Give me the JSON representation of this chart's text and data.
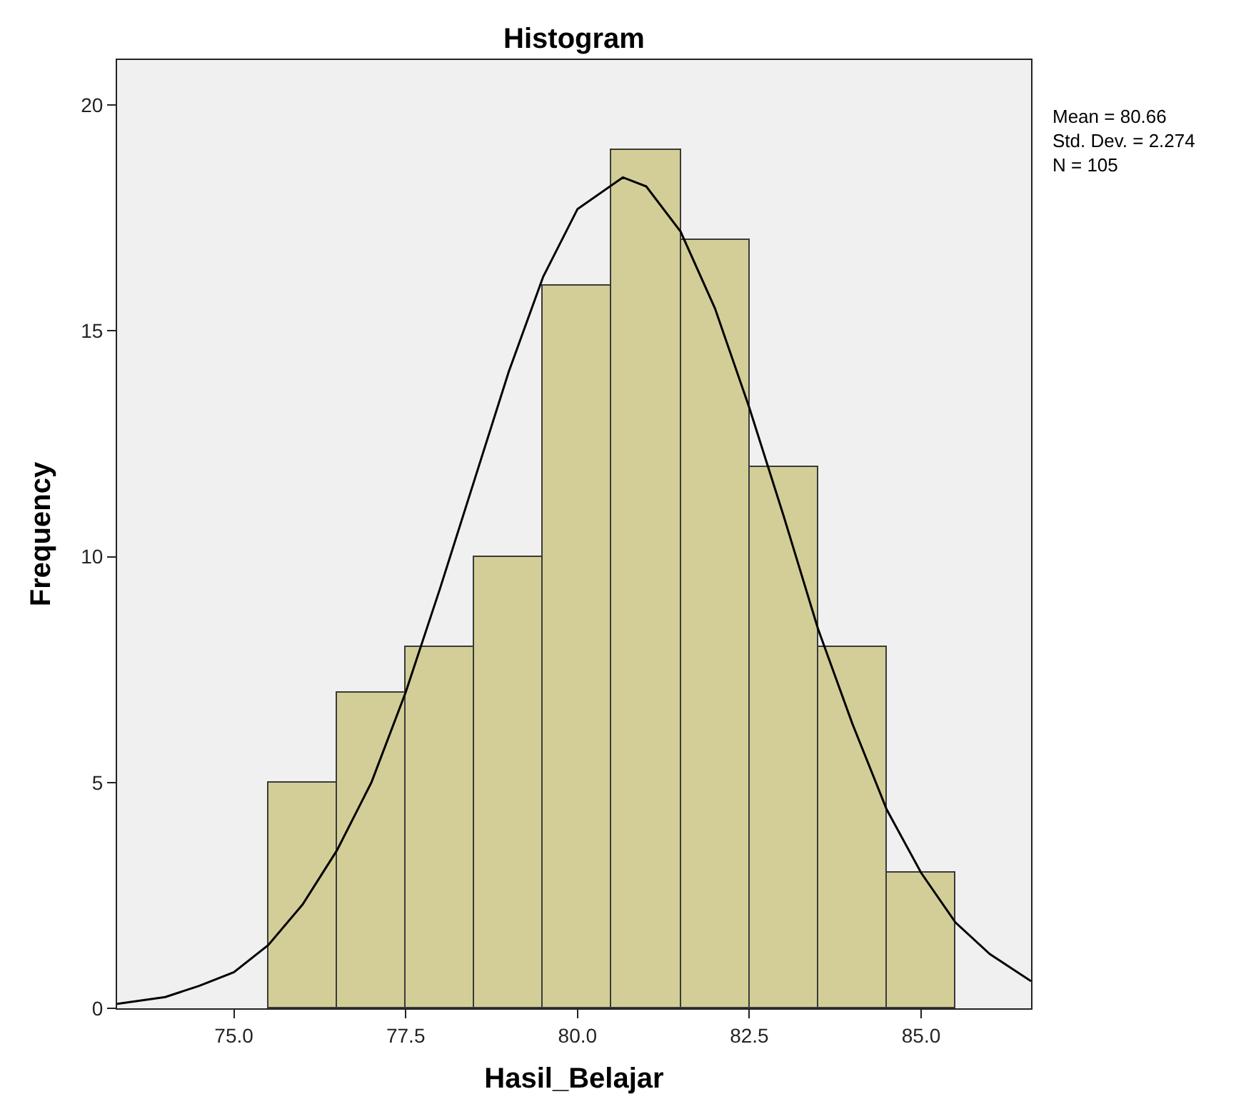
{
  "chart_data": {
    "type": "histogram",
    "title": "Histogram",
    "xlabel": "Hasil_Belajar",
    "ylabel": "Frequency",
    "bins": [
      75.5,
      76.5,
      77.5,
      78.5,
      79.5,
      80.5,
      81.5,
      82.5,
      83.5,
      84.5,
      85.5
    ],
    "values": [
      5,
      7,
      8,
      10,
      16,
      19,
      17,
      12,
      8,
      3
    ],
    "color": "#d3ce97",
    "series": [
      {
        "type": "line",
        "color": "#000000",
        "x": [
          73.3,
          74,
          74.5,
          75,
          75.5,
          76,
          76.5,
          77,
          77.5,
          78,
          78.5,
          79,
          79.5,
          80,
          80.66,
          81,
          81.5,
          82,
          82.5,
          83,
          83.5,
          84,
          84.5,
          85,
          85.5,
          86,
          86.6
        ],
        "values": [
          0.1,
          0.25,
          0.5,
          0.8,
          1.4,
          2.3,
          3.5,
          5.0,
          7.0,
          9.3,
          11.7,
          14.1,
          16.2,
          17.7,
          18.4,
          18.2,
          17.2,
          15.5,
          13.3,
          10.9,
          8.4,
          6.3,
          4.4,
          3.0,
          1.9,
          1.2,
          0.6
        ]
      }
    ],
    "xlim": [
      73.3,
      86.6
    ],
    "xticks": [
      {
        "value": 75,
        "label": "75.0"
      },
      {
        "value": 77.5,
        "label": "77.5"
      },
      {
        "value": 80,
        "label": "80.0"
      },
      {
        "value": 82.5,
        "label": "82.5"
      },
      {
        "value": 85,
        "label": "85.0"
      }
    ],
    "ylim": [
      0,
      21
    ],
    "yticks": [
      0,
      5,
      10,
      15,
      20
    ],
    "annotations": [
      "Mean = 80.66",
      "Std. Dev. = 2.274",
      "N = 105"
    ],
    "grid": false,
    "marker": "none",
    "line_style": "solid"
  }
}
